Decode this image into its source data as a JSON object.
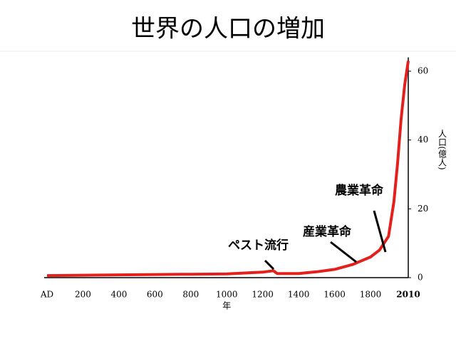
{
  "chart_data": {
    "type": "line",
    "title": "世界の人口の増加",
    "x": [
      0,
      200,
      400,
      600,
      800,
      1000,
      1200,
      1260,
      1280,
      1400,
      1500,
      1600,
      1700,
      1800,
      1850,
      1900,
      1930,
      1950,
      1970,
      1990,
      2010
    ],
    "series": [
      {
        "name": "人口",
        "color": "#e3201b",
        "values": [
          0.6,
          0.7,
          0.8,
          0.9,
          1,
          1.1,
          1.6,
          2,
          1.2,
          1.2,
          1.7,
          2.4,
          3.8,
          6,
          8,
          12,
          22,
          33,
          46,
          56,
          63
        ]
      }
    ],
    "xlim": [
      0,
      2010
    ],
    "xticks": [
      {
        "value": 0,
        "label": "AD"
      },
      200,
      400,
      600,
      800,
      1000,
      1200,
      1400,
      1600,
      1800,
      2010
    ],
    "ylim": [
      0,
      64
    ],
    "yticks": [
      0,
      20,
      40,
      60
    ],
    "xlabel": "年",
    "ylabel": "人口(億人)",
    "annotations": [
      "ペスト流行",
      "産業革命",
      "農業革命"
    ]
  }
}
